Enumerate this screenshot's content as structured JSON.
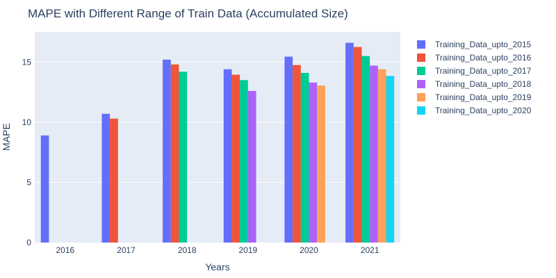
{
  "chart_data": {
    "type": "bar",
    "title": "MAPE with Different Range of Train Data (Accumulated Size)",
    "xlabel": "Years",
    "ylabel": "MAPE",
    "categories": [
      "2016",
      "2017",
      "2018",
      "2019",
      "2020",
      "2021"
    ],
    "yticks": [
      0,
      5,
      10,
      15
    ],
    "ylim": [
      0,
      17.5
    ],
    "grid": true,
    "legend_position": "right",
    "series": [
      {
        "name": "Training_Data_upto_2015",
        "color": "#636efa",
        "values": [
          8.9,
          10.7,
          15.2,
          14.4,
          15.45,
          16.6
        ]
      },
      {
        "name": "Training_Data_upto_2016",
        "color": "#ef553b",
        "values": [
          null,
          10.3,
          14.8,
          13.95,
          14.75,
          16.25
        ]
      },
      {
        "name": "Training_Data_upto_2017",
        "color": "#00cc96",
        "values": [
          null,
          null,
          14.2,
          13.5,
          14.1,
          15.5
        ]
      },
      {
        "name": "Training_Data_upto_2018",
        "color": "#ab63fa",
        "values": [
          null,
          null,
          null,
          12.6,
          13.3,
          14.7
        ]
      },
      {
        "name": "Training_Data_upto_2019",
        "color": "#ffa15a",
        "values": [
          null,
          null,
          null,
          null,
          13.05,
          14.4
        ]
      },
      {
        "name": "Training_Data_upto_2020",
        "color": "#19d3f3",
        "values": [
          null,
          null,
          null,
          null,
          null,
          13.85
        ]
      }
    ]
  }
}
